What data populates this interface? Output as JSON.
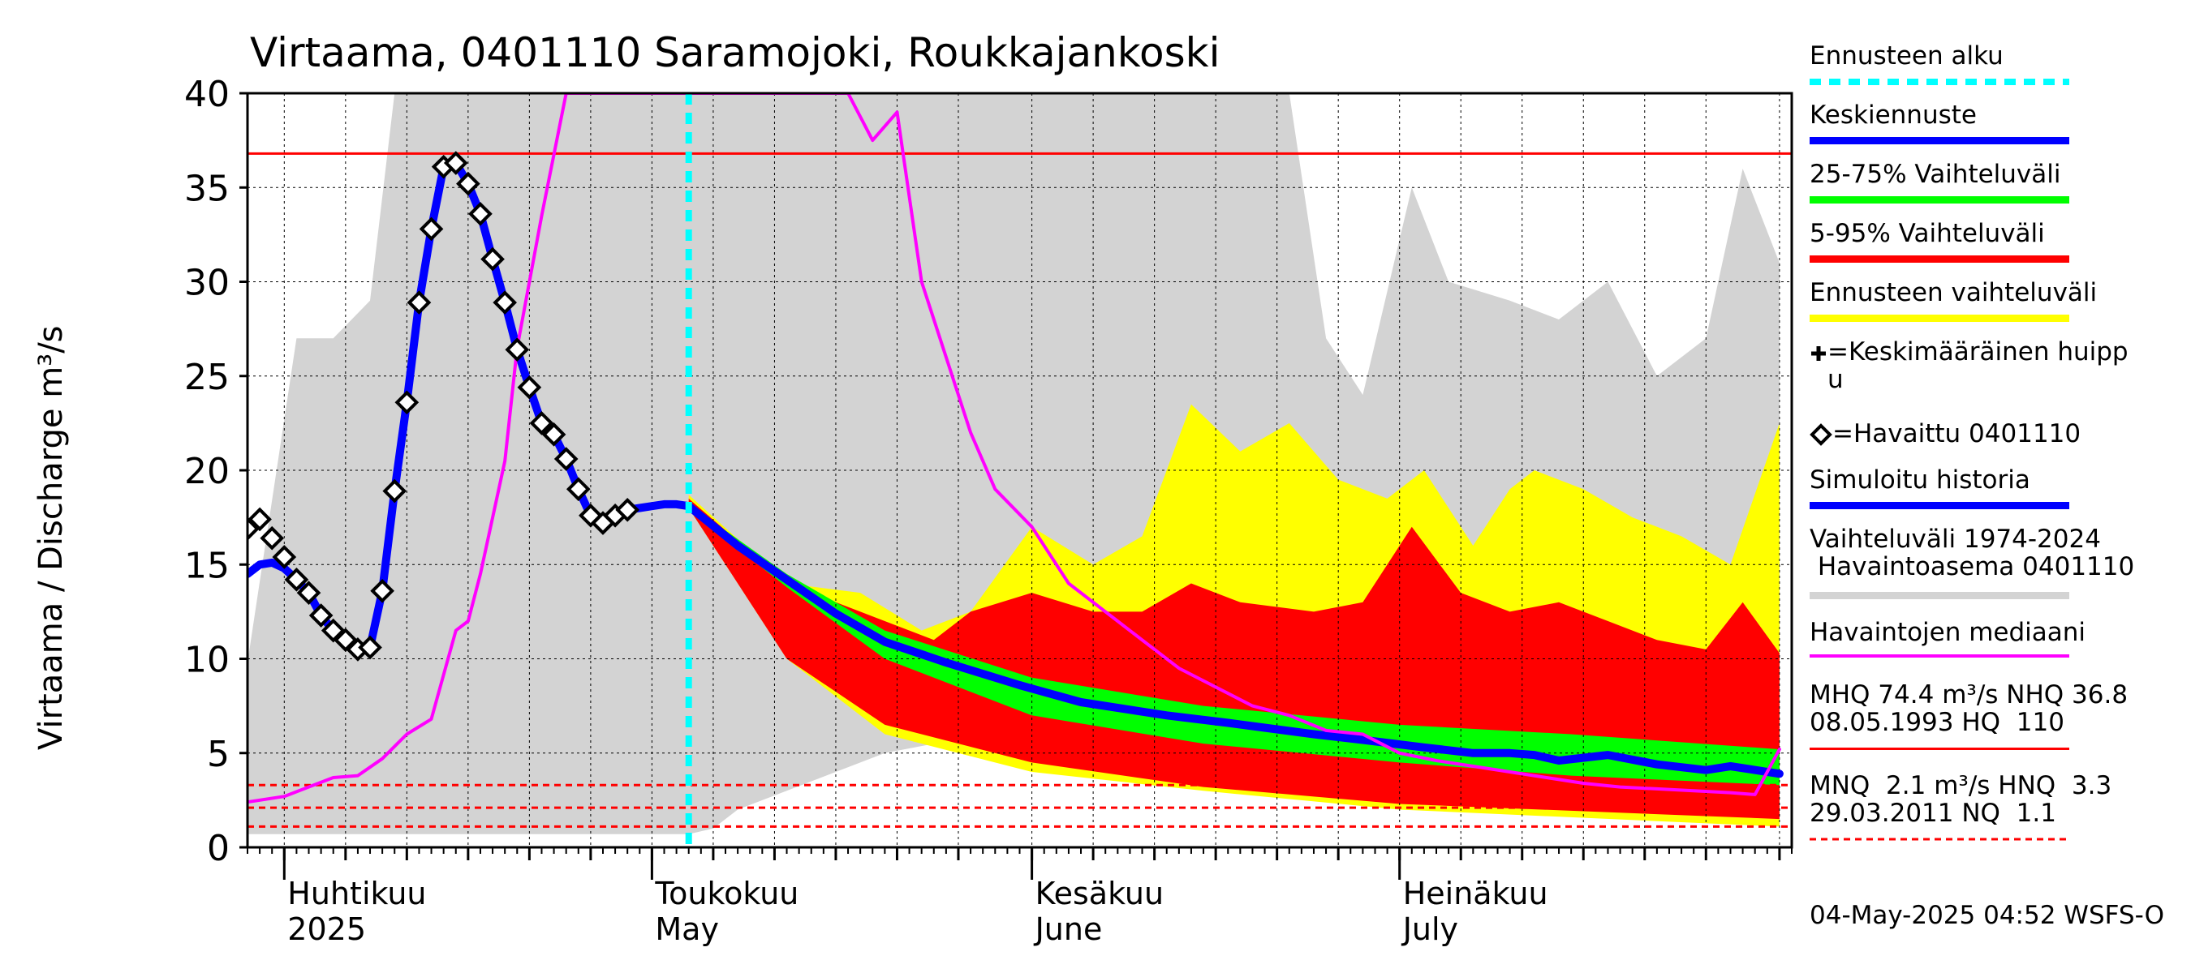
{
  "chart_data": {
    "type": "line",
    "title": "Virtaama, 0401110 Saramojoki, Roukkajankoski",
    "ylabel": "Virtaama / Discharge   m³/s",
    "xlabel": "",
    "ylim": [
      0,
      40
    ],
    "yticks": [
      0,
      5,
      10,
      15,
      20,
      25,
      30,
      35,
      40
    ],
    "x_range": [
      "2025-03-29",
      "2025-08-02"
    ],
    "grid": true,
    "legend_position": "right",
    "x_month_labels": [
      {
        "date": "2025-04-01",
        "line1": "Huhtikuu",
        "line2": "2025"
      },
      {
        "date": "2025-05-01",
        "line1": "Toukokuu",
        "line2": "May"
      },
      {
        "date": "2025-06-01",
        "line1": "Kesäkuu",
        "line2": "June"
      },
      {
        "date": "2025-07-01",
        "line1": "Heinäkuu",
        "line2": "July"
      }
    ],
    "forecast_start": "2025-05-04",
    "reference_lines": [
      {
        "name": "MHQ",
        "value": 74.4,
        "style": "solid"
      },
      {
        "name": "NHQ",
        "value": 36.8,
        "style": "solid"
      },
      {
        "name": "HNQ",
        "value": 3.3,
        "style": "dashed"
      },
      {
        "name": "MNQ",
        "value": 2.1,
        "style": "dashed"
      },
      {
        "name": "NQ",
        "value": 1.1,
        "style": "dashed"
      }
    ],
    "series": [
      {
        "name": "Havaittu 0401110",
        "style": "diamond",
        "points": [
          [
            "2025-03-29",
            16.9
          ],
          [
            "2025-03-30",
            17.4
          ],
          [
            "2025-03-31",
            16.4
          ],
          [
            "2025-04-01",
            15.4
          ],
          [
            "2025-04-02",
            14.2
          ],
          [
            "2025-04-03",
            13.5
          ],
          [
            "2025-04-04",
            12.3
          ],
          [
            "2025-04-05",
            11.5
          ],
          [
            "2025-04-06",
            11.0
          ],
          [
            "2025-04-07",
            10.5
          ],
          [
            "2025-04-08",
            10.6
          ],
          [
            "2025-04-09",
            13.6
          ],
          [
            "2025-04-10",
            18.9
          ],
          [
            "2025-04-11",
            23.6
          ],
          [
            "2025-04-12",
            28.9
          ],
          [
            "2025-04-13",
            32.8
          ],
          [
            "2025-04-14",
            36.1
          ],
          [
            "2025-04-15",
            36.3
          ],
          [
            "2025-04-16",
            35.2
          ],
          [
            "2025-04-17",
            33.6
          ],
          [
            "2025-04-18",
            31.2
          ],
          [
            "2025-04-19",
            28.9
          ],
          [
            "2025-04-20",
            26.4
          ],
          [
            "2025-04-21",
            24.4
          ],
          [
            "2025-04-22",
            22.5
          ],
          [
            "2025-04-23",
            21.9
          ],
          [
            "2025-04-24",
            20.6
          ],
          [
            "2025-04-25",
            19.0
          ],
          [
            "2025-04-26",
            17.6
          ],
          [
            "2025-04-27",
            17.2
          ],
          [
            "2025-04-28",
            17.6
          ],
          [
            "2025-04-29",
            17.9
          ]
        ]
      },
      {
        "name": "Simuloitu historia",
        "color": "#0000ff",
        "points": [
          [
            "2025-03-29",
            14.5
          ],
          [
            "2025-03-30",
            15.0
          ],
          [
            "2025-03-31",
            15.1
          ],
          [
            "2025-04-01",
            14.8
          ],
          [
            "2025-04-02",
            14.2
          ],
          [
            "2025-04-03",
            13.5
          ],
          [
            "2025-04-04",
            12.3
          ],
          [
            "2025-04-05",
            11.5
          ],
          [
            "2025-04-06",
            11.0
          ],
          [
            "2025-04-07",
            10.5
          ],
          [
            "2025-04-08",
            10.6
          ],
          [
            "2025-04-09",
            13.6
          ],
          [
            "2025-04-10",
            18.9
          ],
          [
            "2025-04-11",
            23.6
          ],
          [
            "2025-04-12",
            28.9
          ],
          [
            "2025-04-13",
            32.8
          ],
          [
            "2025-04-14",
            36.1
          ],
          [
            "2025-04-15",
            36.3
          ],
          [
            "2025-04-16",
            35.2
          ],
          [
            "2025-04-17",
            33.6
          ],
          [
            "2025-04-18",
            31.2
          ],
          [
            "2025-04-19",
            28.9
          ],
          [
            "2025-04-20",
            26.4
          ],
          [
            "2025-04-21",
            24.4
          ],
          [
            "2025-04-22",
            22.5
          ],
          [
            "2025-04-23",
            21.9
          ],
          [
            "2025-04-24",
            20.6
          ],
          [
            "2025-04-25",
            19.0
          ],
          [
            "2025-04-26",
            17.6
          ],
          [
            "2025-04-27",
            17.2
          ],
          [
            "2025-04-28",
            17.6
          ],
          [
            "2025-04-29",
            17.9
          ],
          [
            "2025-04-30",
            18.0
          ],
          [
            "2025-05-01",
            18.1
          ],
          [
            "2025-05-02",
            18.2
          ],
          [
            "2025-05-03",
            18.2
          ],
          [
            "2025-05-04",
            18.1
          ]
        ]
      },
      {
        "name": "Keskiennuste",
        "color": "#0000ff",
        "points": [
          [
            "2025-05-04",
            18.1
          ],
          [
            "2025-05-08",
            16.0
          ],
          [
            "2025-05-12",
            14.2
          ],
          [
            "2025-05-16",
            12.4
          ],
          [
            "2025-05-20",
            10.9
          ],
          [
            "2025-05-25",
            9.8
          ],
          [
            "2025-05-31",
            8.6
          ],
          [
            "2025-06-05",
            7.7
          ],
          [
            "2025-06-12",
            7.0
          ],
          [
            "2025-06-17",
            6.6
          ],
          [
            "2025-06-24",
            6.0
          ],
          [
            "2025-06-28",
            5.7
          ],
          [
            "2025-07-03",
            5.3
          ],
          [
            "2025-07-07",
            5.0
          ],
          [
            "2025-07-10",
            5.0
          ],
          [
            "2025-07-12",
            4.9
          ],
          [
            "2025-07-14",
            4.6
          ],
          [
            "2025-07-18",
            4.9
          ],
          [
            "2025-07-22",
            4.4
          ],
          [
            "2025-07-26",
            4.1
          ],
          [
            "2025-07-28",
            4.3
          ],
          [
            "2025-08-01",
            3.9
          ]
        ]
      },
      {
        "name": "Havaintojen mediaani",
        "color": "#ff00ff",
        "points": [
          [
            "2025-03-29",
            2.4
          ],
          [
            "2025-04-01",
            2.7
          ],
          [
            "2025-04-05",
            3.7
          ],
          [
            "2025-04-07",
            3.8
          ],
          [
            "2025-04-09",
            4.7
          ],
          [
            "2025-04-11",
            6.0
          ],
          [
            "2025-04-13",
            6.8
          ],
          [
            "2025-04-15",
            11.5
          ],
          [
            "2025-04-16",
            12.0
          ],
          [
            "2025-04-17",
            14.5
          ],
          [
            "2025-04-19",
            20.5
          ],
          [
            "2025-04-20",
            26.5
          ],
          [
            "2025-04-22",
            33.5
          ],
          [
            "2025-04-24",
            40.0
          ],
          [
            "2025-05-17",
            40.0
          ],
          [
            "2025-05-19",
            37.5
          ],
          [
            "2025-05-21",
            39.0
          ],
          [
            "2025-05-23",
            30.0
          ],
          [
            "2025-05-25",
            26.0
          ],
          [
            "2025-05-27",
            22.0
          ],
          [
            "2025-05-29",
            19.0
          ],
          [
            "2025-06-01",
            17.0
          ],
          [
            "2025-06-04",
            14.0
          ],
          [
            "2025-06-07",
            12.5
          ],
          [
            "2025-06-10",
            11.0
          ],
          [
            "2025-06-13",
            9.5
          ],
          [
            "2025-06-16",
            8.5
          ],
          [
            "2025-06-19",
            7.5
          ],
          [
            "2025-06-22",
            7.0
          ],
          [
            "2025-06-25",
            6.2
          ],
          [
            "2025-06-28",
            6.0
          ],
          [
            "2025-07-01",
            5.0
          ],
          [
            "2025-07-04",
            4.6
          ],
          [
            "2025-07-07",
            4.3
          ],
          [
            "2025-07-10",
            4.0
          ],
          [
            "2025-07-13",
            3.7
          ],
          [
            "2025-07-16",
            3.4
          ],
          [
            "2025-07-19",
            3.2
          ],
          [
            "2025-07-22",
            3.1
          ],
          [
            "2025-07-25",
            3.0
          ],
          [
            "2025-07-28",
            2.9
          ],
          [
            "2025-07-30",
            2.8
          ],
          [
            "2025-08-01",
            5.2
          ]
        ]
      }
    ],
    "bands": [
      {
        "name": "Vaihteluväli 1974-2024 Havaintoasema 0401110",
        "color": "#d3d3d3",
        "upper": [
          [
            "2025-03-29",
            9.8
          ],
          [
            "2025-04-02",
            27.0
          ],
          [
            "2025-04-05",
            27.0
          ],
          [
            "2025-04-08",
            29.0
          ],
          [
            "2025-04-10",
            40.0
          ],
          [
            "2025-06-22",
            40.0
          ],
          [
            "2025-06-25",
            27.0
          ],
          [
            "2025-06-28",
            24.0
          ],
          [
            "2025-07-02",
            35.0
          ],
          [
            "2025-07-05",
            30.0
          ],
          [
            "2025-07-10",
            29.0
          ],
          [
            "2025-07-14",
            28.0
          ],
          [
            "2025-07-18",
            30.0
          ],
          [
            "2025-07-22",
            25.0
          ],
          [
            "2025-07-26",
            27.0
          ],
          [
            "2025-07-29",
            36.0
          ],
          [
            "2025-08-01",
            31.0
          ]
        ],
        "lower": [
          [
            "2025-03-29",
            0.7
          ],
          [
            "2025-05-04",
            0.7
          ],
          [
            "2025-05-06",
            1.0
          ],
          [
            "2025-05-08",
            2.0
          ],
          [
            "2025-05-12",
            3.0
          ],
          [
            "2025-05-20",
            5.0
          ],
          [
            "2025-06-01",
            6.5
          ],
          [
            "2025-06-20",
            7.0
          ],
          [
            "2025-07-10",
            7.5
          ],
          [
            "2025-08-01",
            8.0
          ]
        ]
      },
      {
        "name": "Ennusteen vaihteluväli",
        "color": "#ffff00",
        "upper": [
          [
            "2025-05-04",
            18.7
          ],
          [
            "2025-05-12",
            14.0
          ],
          [
            "2025-05-18",
            13.5
          ],
          [
            "2025-05-23",
            11.5
          ],
          [
            "2025-05-27",
            12.5
          ],
          [
            "2025-06-01",
            17.0
          ],
          [
            "2025-06-06",
            15.0
          ],
          [
            "2025-06-10",
            16.5
          ],
          [
            "2025-06-14",
            23.5
          ],
          [
            "2025-06-18",
            21.0
          ],
          [
            "2025-06-22",
            22.5
          ],
          [
            "2025-06-26",
            19.5
          ],
          [
            "2025-06-30",
            18.5
          ],
          [
            "2025-07-03",
            20.0
          ],
          [
            "2025-07-07",
            16.0
          ],
          [
            "2025-07-10",
            19.0
          ],
          [
            "2025-07-12",
            20.0
          ],
          [
            "2025-07-16",
            19.0
          ],
          [
            "2025-07-20",
            17.5
          ],
          [
            "2025-07-24",
            16.5
          ],
          [
            "2025-07-28",
            15.0
          ],
          [
            "2025-08-01",
            22.5
          ]
        ],
        "lower": [
          [
            "2025-05-04",
            18.0
          ],
          [
            "2025-05-12",
            10.0
          ],
          [
            "2025-05-20",
            6.0
          ],
          [
            "2025-06-01",
            4.0
          ],
          [
            "2025-06-15",
            3.0
          ],
          [
            "2025-07-01",
            2.0
          ],
          [
            "2025-08-01",
            1.1
          ]
        ]
      },
      {
        "name": "5-95% Vaihteluväli",
        "color": "#ff0000",
        "upper": [
          [
            "2025-05-04",
            18.5
          ],
          [
            "2025-05-12",
            14.0
          ],
          [
            "2025-05-18",
            12.5
          ],
          [
            "2025-05-24",
            11.0
          ],
          [
            "2025-05-27",
            12.5
          ],
          [
            "2025-06-01",
            13.5
          ],
          [
            "2025-06-06",
            12.5
          ],
          [
            "2025-06-10",
            12.5
          ],
          [
            "2025-06-14",
            14.0
          ],
          [
            "2025-06-18",
            13.0
          ],
          [
            "2025-06-24",
            12.5
          ],
          [
            "2025-06-28",
            13.0
          ],
          [
            "2025-07-02",
            17.0
          ],
          [
            "2025-07-06",
            13.5
          ],
          [
            "2025-07-10",
            12.5
          ],
          [
            "2025-07-14",
            13.0
          ],
          [
            "2025-07-18",
            12.0
          ],
          [
            "2025-07-22",
            11.0
          ],
          [
            "2025-07-26",
            10.5
          ],
          [
            "2025-07-29",
            13.0
          ],
          [
            "2025-08-01",
            10.3
          ]
        ],
        "lower": [
          [
            "2025-05-04",
            18.0
          ],
          [
            "2025-05-12",
            10.0
          ],
          [
            "2025-05-20",
            6.5
          ],
          [
            "2025-06-01",
            4.5
          ],
          [
            "2025-06-15",
            3.2
          ],
          [
            "2025-07-01",
            2.3
          ],
          [
            "2025-08-01",
            1.5
          ]
        ]
      },
      {
        "name": "25-75% Vaihteluväli",
        "color": "#00ff00",
        "upper": [
          [
            "2025-05-04",
            18.2
          ],
          [
            "2025-05-12",
            14.5
          ],
          [
            "2025-05-20",
            11.5
          ],
          [
            "2025-06-01",
            9.0
          ],
          [
            "2025-06-15",
            7.5
          ],
          [
            "2025-07-01",
            6.5
          ],
          [
            "2025-07-15",
            6.0
          ],
          [
            "2025-08-01",
            5.2
          ]
        ],
        "lower": [
          [
            "2025-05-04",
            17.9
          ],
          [
            "2025-05-12",
            13.8
          ],
          [
            "2025-05-20",
            10.0
          ],
          [
            "2025-06-01",
            7.0
          ],
          [
            "2025-06-15",
            5.5
          ],
          [
            "2025-07-01",
            4.5
          ],
          [
            "2025-07-15",
            3.8
          ],
          [
            "2025-08-01",
            3.3
          ]
        ]
      }
    ]
  },
  "labels": {
    "title": "Virtaama, 0401110 Saramojoki, Roukkajankoski",
    "ylabel": "Virtaama / Discharge   m³/s",
    "timestamp": "04-May-2025 04:52 WSFS-O"
  },
  "legend": {
    "forecast_start": {
      "label": "Ennusteen alku",
      "color": "#00ffff"
    },
    "mean_forecast": {
      "label": "Keskiennuste",
      "color": "#0000ff"
    },
    "band_25_75": {
      "label": "25-75% Vaihteluväli",
      "color": "#00ff00"
    },
    "band_5_95": {
      "label": "5-95% Vaihteluväli",
      "color": "#ff0000"
    },
    "forecast_range": {
      "label": "Ennusteen vaihteluväli",
      "color": "#ffff00"
    },
    "mean_peak": {
      "label": "=Keskimääräinen huipp\nu"
    },
    "observed": {
      "label": "=Havaittu 0401110"
    },
    "sim_history": {
      "label": "Simuloitu historia",
      "color": "#0000ff"
    },
    "hist_range": {
      "label": "Vaihteluväli 1974-2024\n Havaintoasema 0401110",
      "color": "#d3d3d3"
    },
    "median": {
      "label": "Havaintojen mediaani",
      "color": "#ff00ff"
    },
    "high_stats": {
      "label": "MHQ 74.4 m³/s NHQ 36.8\n08.05.1993 HQ  110",
      "color": "#ff0000"
    },
    "low_stats": {
      "label": "MNQ  2.1 m³/s HNQ  3.3\n29.03.2011 NQ  1.1",
      "color": "#ff0000"
    }
  }
}
